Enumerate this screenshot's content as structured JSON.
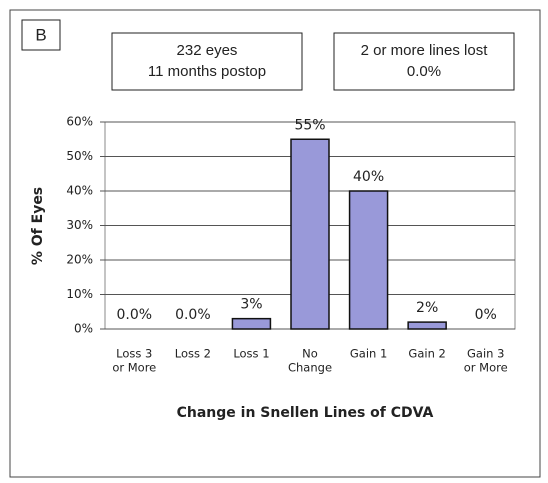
{
  "chart_data": {
    "type": "bar",
    "panel_label": "B",
    "annotations": [
      [
        "232 eyes",
        "11 months postop"
      ],
      [
        "2 or more lines lost",
        "0.0%"
      ]
    ],
    "x_label": "Change in Snellen Lines of CDVA",
    "y_label": "% Of Eyes",
    "categories": [
      [
        "Loss 3",
        "or More"
      ],
      [
        "Loss 2"
      ],
      [
        "Loss 1"
      ],
      [
        "No",
        "Change"
      ],
      [
        "Gain 1"
      ],
      [
        "Gain 2"
      ],
      [
        "Gain 3",
        "or More"
      ]
    ],
    "values": [
      0,
      0,
      3,
      55,
      40,
      2,
      0
    ],
    "value_labels": [
      "0.0%",
      "0.0%",
      "3%",
      "55%",
      "40%",
      "2%",
      "0%"
    ],
    "color": "#9999d9",
    "ylim": [
      0,
      60
    ],
    "yticks": [
      {
        "value": 0,
        "label": "0%"
      },
      {
        "value": 10,
        "label": "10%"
      },
      {
        "value": 20,
        "label": "20%"
      },
      {
        "value": 30,
        "label": "30%"
      },
      {
        "value": 40,
        "label": "40%"
      },
      {
        "value": 50,
        "label": "50%"
      },
      {
        "value": 60,
        "label": "60%"
      }
    ],
    "grid": true
  }
}
